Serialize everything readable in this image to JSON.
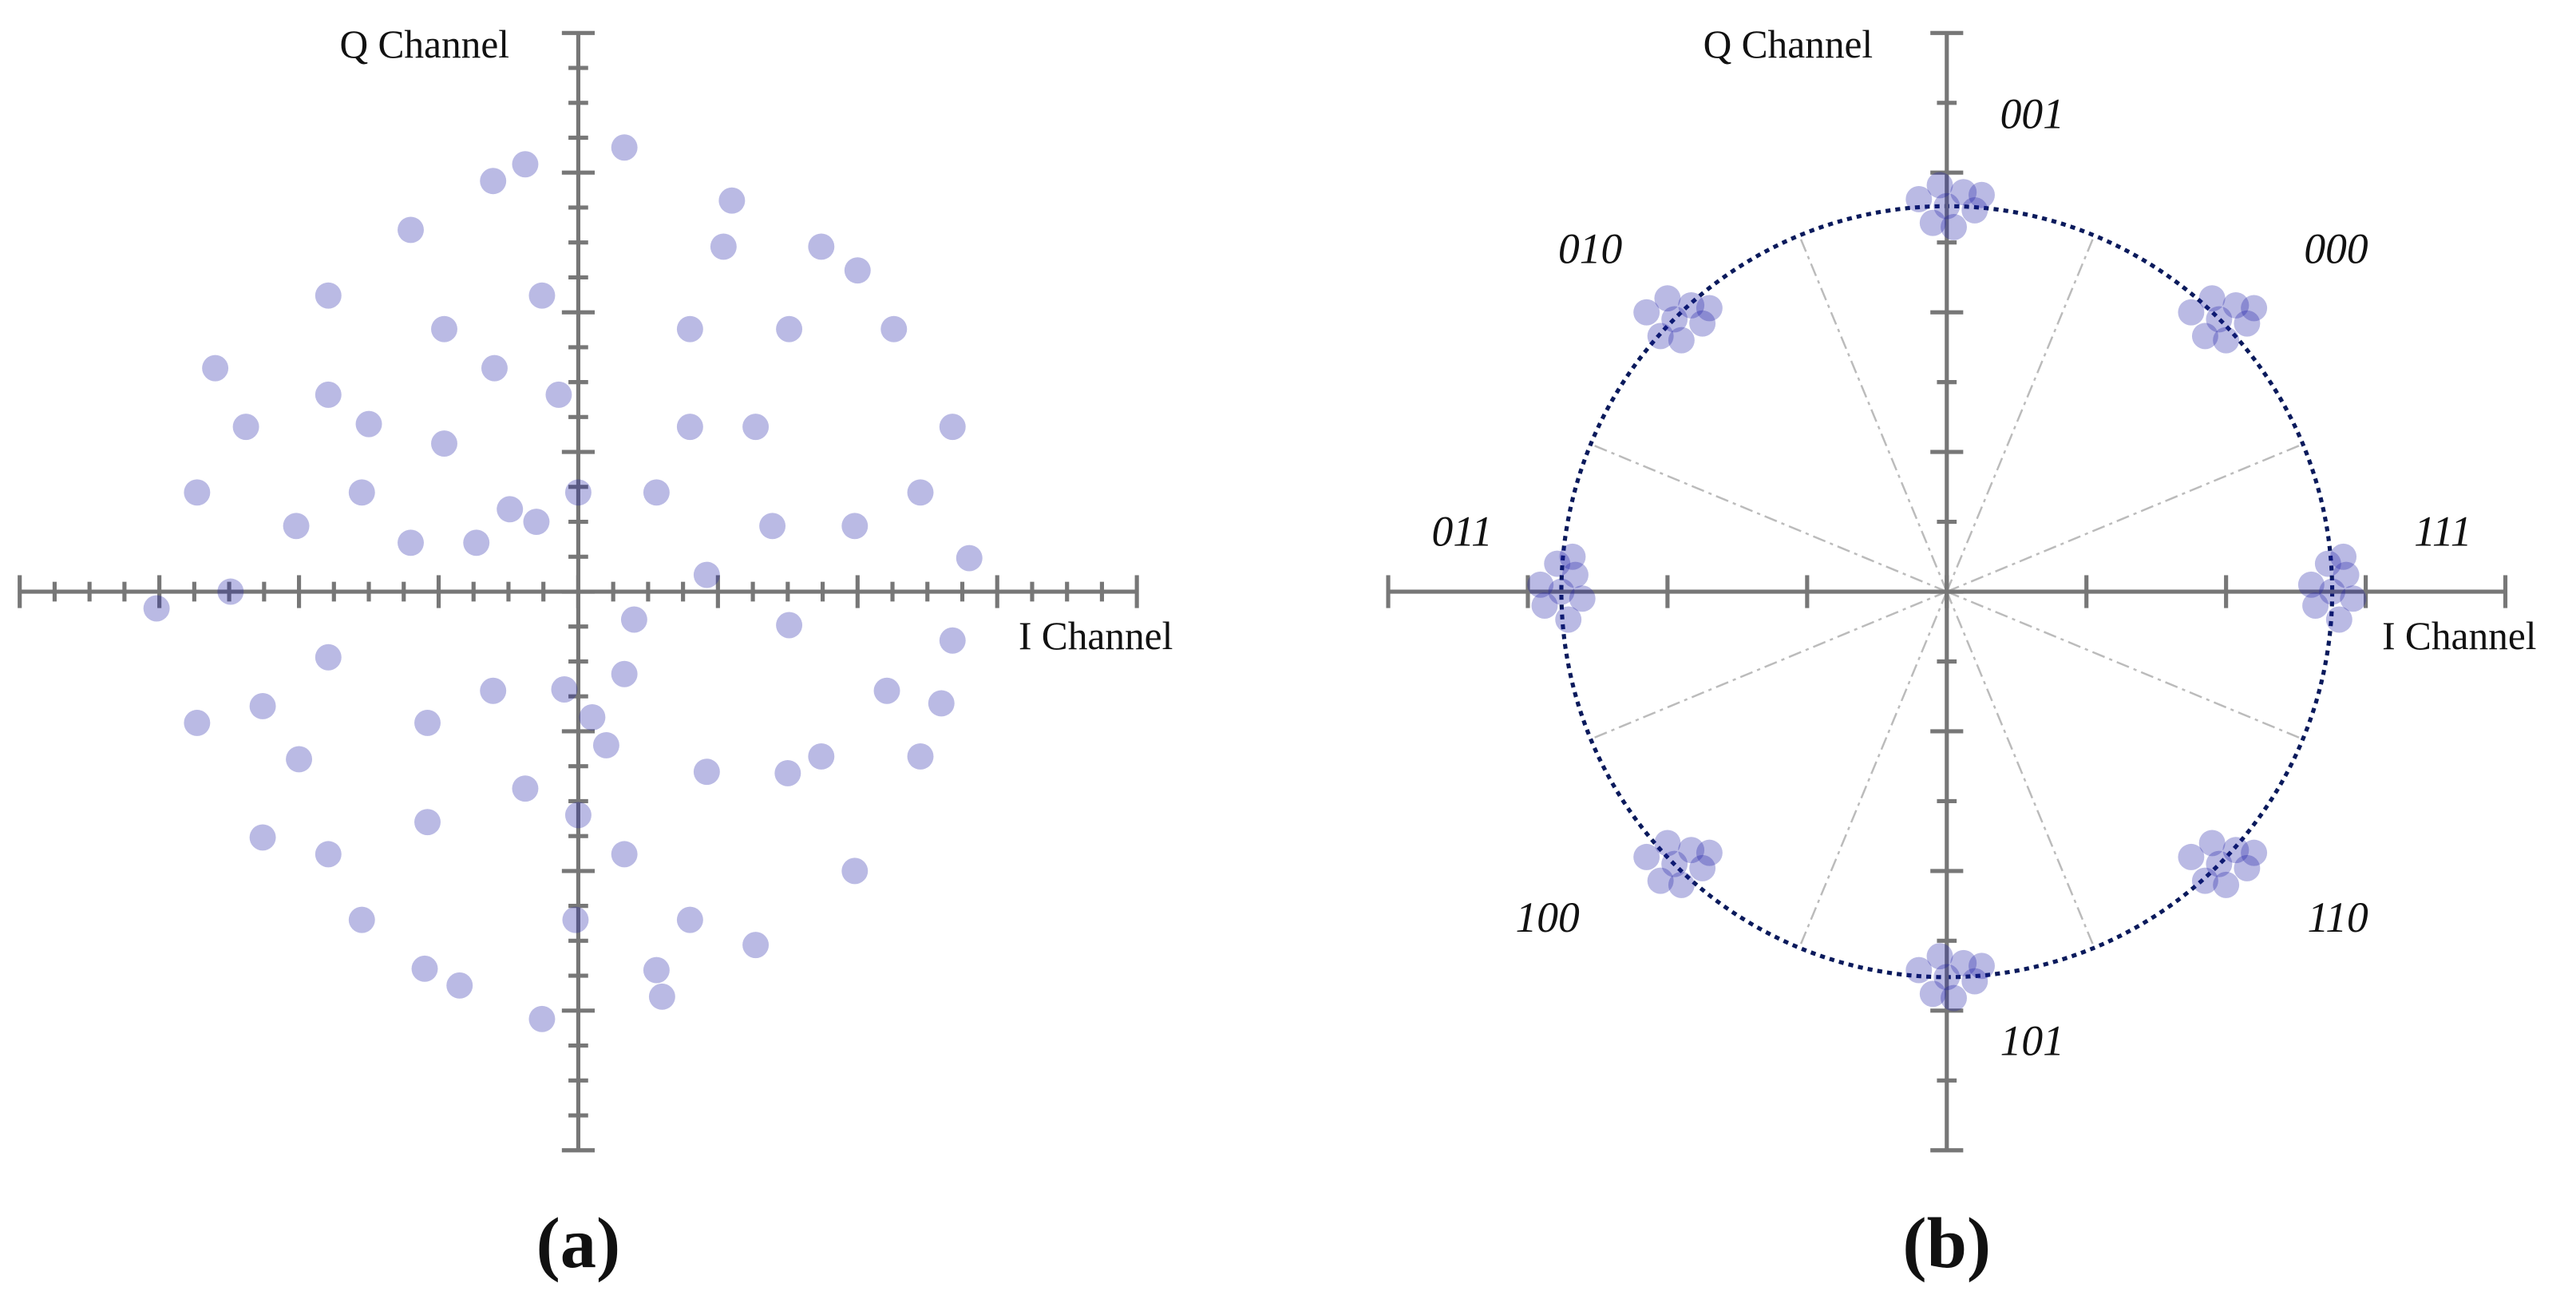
{
  "chart_data": [
    {
      "type": "scatter",
      "caption": "(a)",
      "xlabel": "I Channel",
      "ylabel": "Q Channel",
      "xlim": [
        -4,
        4
      ],
      "ylim": [
        -4,
        4
      ],
      "xticks": [
        -4,
        -3.75,
        -3.5,
        -3.25,
        -3,
        -2.75,
        -2.5,
        -2.25,
        -2,
        -1.75,
        -1.5,
        -1.25,
        -1,
        -0.75,
        -0.5,
        -0.25,
        0,
        0.25,
        0.5,
        0.75,
        1,
        1.25,
        1.5,
        1.75,
        2,
        2.25,
        2.5,
        2.75,
        3,
        3.25,
        3.5,
        3.75,
        4
      ],
      "yticks": [
        -4,
        -3.75,
        -3.5,
        -3.25,
        -3,
        -2.75,
        -2.5,
        -2.25,
        -2,
        -1.75,
        -1.5,
        -1.25,
        -1,
        -0.75,
        -0.5,
        -0.25,
        0,
        0.25,
        0.5,
        0.75,
        1,
        1.25,
        1.5,
        1.75,
        2,
        2.25,
        2.5,
        2.75,
        3,
        3.25,
        3.5,
        3.75,
        4
      ],
      "series": [
        {
          "color": "#1a1aa6",
          "x": [
            -0.38,
            0.33,
            1.04,
            1.74,
            2.26,
            2.68,
            2.8,
            2.68,
            2.45,
            1.98,
            1.27,
            0.56,
            -0.26,
            -0.85,
            -1.55,
            -2.26,
            -2.73,
            -3.02,
            -2.73,
            -2.38,
            -1.79,
            -1.2,
            -0.61,
            -0.96,
            -0.26,
            -0.14,
            -0.49,
            -0.96,
            -1.2,
            -0.73,
            0.8,
            1.27,
            0.8,
            0.33,
            0.92,
            1.51,
            1.74,
            0.92,
            0.33,
            -0.38,
            -1.08,
            -1.79,
            -2.26,
            -1.79,
            -1.08,
            -0.02,
            0.8,
            2.21,
            1.98,
            1.39,
            -2.02,
            -1.79,
            0.56,
            0,
            -0.61,
            -2.49,
            2.45,
            1.51,
            -1.55,
            -0.1,
            0.1,
            -0.3,
            0.2,
            -0.6,
            0.6,
            1.1,
            -1.1,
            2.0,
            -2.0,
            1.5,
            -1.5,
            2.6,
            -2.6,
            0.0,
            0.4
          ],
          "values": [
            3.06,
            3.18,
            2.47,
            2.47,
            1.88,
            1.18,
            0.24,
            -0.35,
            -1.18,
            -2.0,
            -2.53,
            -2.71,
            -3.06,
            -2.82,
            -2.35,
            -1.76,
            -0.94,
            -0.12,
            0.71,
            1.18,
            2.12,
            2.59,
            2.94,
            1.88,
            2.12,
            1.41,
            0.59,
            1.06,
            0.35,
            0.35,
            1.88,
            1.18,
            1.18,
            -0.59,
            0.12,
            -0.24,
            -1.18,
            -1.29,
            -1.88,
            -1.41,
            -0.94,
            -0.47,
            -0.82,
            -1.88,
            -1.65,
            -2.35,
            -2.35,
            -0.71,
            0.47,
            0.47,
            0.47,
            1.41,
            0.71,
            0.71,
            -0.71,
            0,
            0.71,
            1.88,
            0.71,
            -0.7,
            -0.9,
            0.5,
            -1.1,
            1.6,
            -2.9,
            2.8,
            -2.7,
            2.3,
            -1.2,
            -1.3,
            1.2,
            -0.8,
            1.6,
            -1.6,
            -0.2
          ]
        }
      ]
    },
    {
      "type": "scatter",
      "caption": "(b)",
      "xlabel": "I Channel",
      "ylabel": "Q Channel",
      "xlim": [
        -4,
        4
      ],
      "ylim": [
        -4,
        4
      ],
      "xticks": [
        -4,
        -3,
        -2,
        -1,
        0,
        1,
        2,
        3,
        4
      ],
      "yticks": [
        -4,
        -3.5,
        -3,
        -2.5,
        -2,
        -1.5,
        -1,
        -0.5,
        0,
        0.5,
        1,
        1.5,
        2,
        2.5,
        3,
        3.5,
        4
      ],
      "reference_circle_radius": 2.76,
      "boundary_angles": [
        22.5,
        67.5,
        112.5,
        157.5,
        202.5,
        247.5,
        292.5,
        337.5
      ],
      "series": [
        {
          "name": "001",
          "color": "#1a1aa6",
          "x": [
            0,
            -0.2,
            0.2,
            -0.1,
            0.12,
            0.25,
            -0.05,
            0.05
          ],
          "values": [
            2.76,
            2.81,
            2.73,
            2.64,
            2.86,
            2.84,
            2.91,
            2.61
          ]
        },
        {
          "name": "000",
          "color": "#1a1aa6",
          "x": [
            1.95,
            1.75,
            2.15,
            1.85,
            2.07,
            2.2,
            1.9,
            2.0
          ],
          "values": [
            1.95,
            2.0,
            1.92,
            1.83,
            2.05,
            2.03,
            2.1,
            1.8
          ]
        },
        {
          "name": "111",
          "color": "#1a1aa6",
          "x": [
            2.76,
            2.81,
            2.73,
            2.64,
            2.86,
            2.84,
            2.91,
            2.61
          ],
          "values": [
            0,
            -0.2,
            0.2,
            -0.1,
            0.12,
            0.25,
            -0.05,
            0.05
          ]
        },
        {
          "name": "110",
          "color": "#1a1aa6",
          "x": [
            1.95,
            1.75,
            2.15,
            1.85,
            2.07,
            2.2,
            1.9,
            2.0
          ],
          "values": [
            -1.95,
            -1.9,
            -1.98,
            -2.07,
            -1.85,
            -1.87,
            -1.8,
            -2.1
          ]
        },
        {
          "name": "101",
          "color": "#1a1aa6",
          "x": [
            0,
            -0.2,
            0.2,
            -0.1,
            0.12,
            0.25,
            -0.05,
            0.05
          ],
          "values": [
            -2.76,
            -2.71,
            -2.79,
            -2.88,
            -2.66,
            -2.68,
            -2.61,
            -2.91
          ]
        },
        {
          "name": "100",
          "color": "#1a1aa6",
          "x": [
            -1.95,
            -2.15,
            -1.75,
            -2.05,
            -1.83,
            -1.7,
            -2.0,
            -1.9
          ],
          "values": [
            -1.95,
            -1.9,
            -1.98,
            -2.07,
            -1.85,
            -1.87,
            -1.8,
            -2.1
          ]
        },
        {
          "name": "011",
          "color": "#1a1aa6",
          "x": [
            -2.76,
            -2.71,
            -2.79,
            -2.88,
            -2.66,
            -2.68,
            -2.61,
            -2.91
          ],
          "values": [
            0,
            -0.2,
            0.2,
            -0.1,
            0.12,
            0.25,
            -0.05,
            0.05
          ]
        },
        {
          "name": "010",
          "color": "#1a1aa6",
          "x": [
            -1.95,
            -2.15,
            -1.75,
            -2.05,
            -1.83,
            -1.7,
            -2.0,
            -1.9
          ],
          "values": [
            1.95,
            2.0,
            1.92,
            1.83,
            2.05,
            2.03,
            2.1,
            1.8
          ]
        }
      ]
    }
  ]
}
